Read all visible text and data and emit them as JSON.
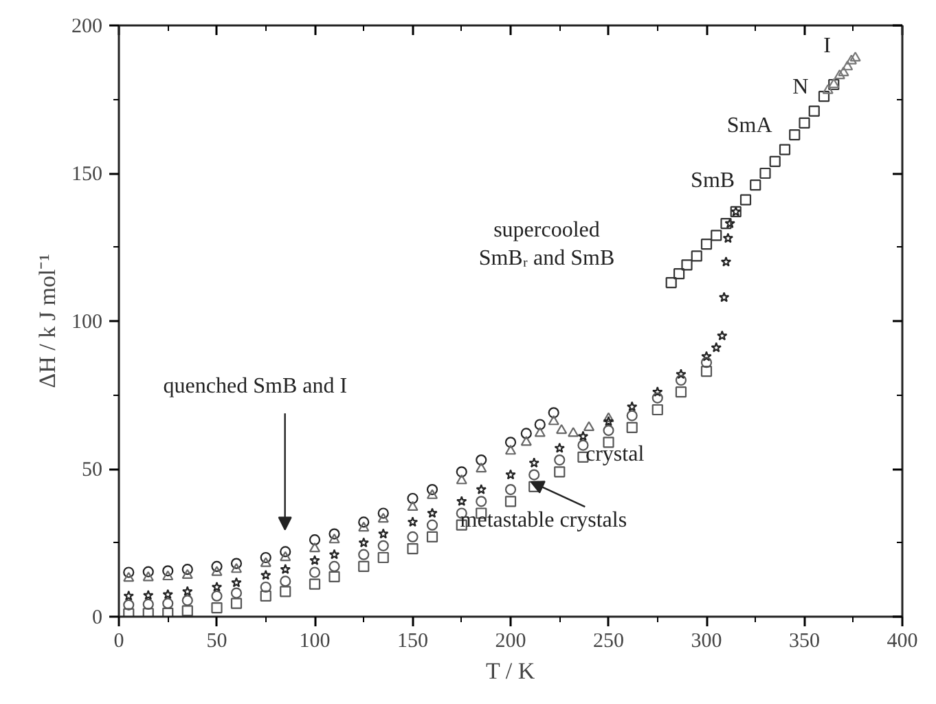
{
  "chart_data": {
    "type": "scatter",
    "xlabel": "T / K",
    "ylabel": "ΔH / k J mol⁻¹",
    "xlim": [
      0,
      400
    ],
    "ylim": [
      0,
      200
    ],
    "xticks": [
      0,
      {
        "value": 25,
        "label": null
      },
      50,
      {
        "value": 75,
        "label": null
      },
      100,
      {
        "value": 125,
        "label": null
      },
      150,
      {
        "value": 175,
        "label": null
      },
      200,
      {
        "value": 225,
        "label": null
      },
      250,
      {
        "value": 275,
        "label": null
      },
      300,
      {
        "value": 325,
        "label": null
      },
      350,
      {
        "value": 375,
        "label": null
      },
      400
    ],
    "yticks": [
      0,
      {
        "value": 25,
        "label": null
      },
      50,
      {
        "value": 75,
        "label": null
      },
      100,
      {
        "value": 125,
        "label": null
      },
      150,
      {
        "value": 175,
        "label": null
      },
      200
    ],
    "grid": false,
    "series": [
      {
        "color": "#222222",
        "marker": "circle",
        "x": [
          5,
          15,
          25,
          35,
          50,
          60,
          75,
          85,
          100,
          110,
          125,
          135,
          150,
          160,
          175,
          185,
          200,
          208,
          215,
          222
        ],
        "values": [
          15,
          15.2,
          15.5,
          16,
          17,
          18,
          20,
          22,
          26,
          28,
          32,
          35,
          40,
          43,
          49,
          53,
          59,
          62,
          65,
          69
        ]
      },
      {
        "color": "#666666",
        "marker": "triangle",
        "x": [
          5,
          15,
          25,
          35,
          50,
          60,
          75,
          85,
          100,
          110,
          125,
          135,
          150,
          160,
          175,
          185,
          200,
          208,
          215,
          222,
          226,
          232,
          240,
          250
        ],
        "values": [
          13,
          13.2,
          13.5,
          14,
          15,
          16,
          18,
          20,
          23,
          26,
          30,
          33,
          37,
          41,
          46,
          50,
          56,
          59,
          62,
          66,
          63,
          62,
          64,
          67
        ]
      },
      {
        "color": "#222222",
        "marker": "star",
        "x": [
          5,
          15,
          25,
          35,
          50,
          60,
          75,
          85,
          100,
          110,
          125,
          135,
          150,
          160,
          175,
          185,
          200,
          212,
          225,
          237,
          250,
          262,
          275,
          287,
          300,
          305,
          308,
          309,
          310,
          311,
          312,
          315
        ],
        "values": [
          7,
          7.2,
          7.5,
          8.5,
          10,
          11.5,
          14,
          16,
          19,
          21,
          25,
          28,
          32,
          35,
          39,
          43,
          48,
          52,
          57,
          61,
          66,
          71,
          76,
          82,
          88,
          91,
          95,
          108,
          120,
          128,
          133,
          137
        ]
      },
      {
        "color": "#555555",
        "marker": "circle",
        "x": [
          5,
          15,
          25,
          35,
          50,
          60,
          75,
          85,
          100,
          110,
          125,
          135,
          150,
          160,
          175,
          185,
          200,
          212,
          225,
          237,
          250,
          262,
          275,
          287,
          300
        ],
        "values": [
          4,
          4.2,
          4.5,
          5.5,
          7,
          8,
          10,
          12,
          15,
          17,
          21,
          24,
          27,
          31,
          35,
          39,
          43,
          48,
          53,
          58,
          63,
          68,
          74,
          80,
          86
        ]
      },
      {
        "color": "#555555",
        "marker": "square",
        "x": [
          5,
          15,
          25,
          35,
          50,
          60,
          75,
          85,
          100,
          110,
          125,
          135,
          150,
          160,
          175,
          185,
          200,
          212,
          225,
          237,
          250,
          262,
          275,
          287,
          300
        ],
        "values": [
          1,
          1.1,
          1.2,
          2,
          3,
          4.5,
          7,
          8.5,
          11,
          13.5,
          17,
          20,
          23,
          27,
          31,
          35,
          39,
          44,
          49,
          54,
          59,
          64,
          70,
          76,
          83
        ]
      },
      {
        "color": "#333333",
        "marker": "square",
        "x": [
          282,
          286,
          290,
          295,
          300,
          305,
          310,
          315,
          320,
          325,
          330,
          335,
          340,
          345,
          350,
          355,
          360,
          365
        ],
        "values": [
          113,
          116,
          119,
          122,
          126,
          129,
          133,
          137,
          141,
          146,
          150,
          154,
          158,
          163,
          167,
          171,
          176,
          180
        ]
      },
      {
        "color": "#777777",
        "marker": "triangle",
        "x": [
          362,
          365,
          368,
          370,
          372,
          374,
          376
        ],
        "values": [
          178,
          180,
          183,
          184,
          186,
          188,
          189
        ]
      }
    ],
    "annotations": [
      "quenched SmB and I",
      "metastable crystals",
      "crystal",
      "supercooled\nSmBᵣ and SmB",
      "SmB",
      "SmA",
      "N",
      "I"
    ]
  }
}
